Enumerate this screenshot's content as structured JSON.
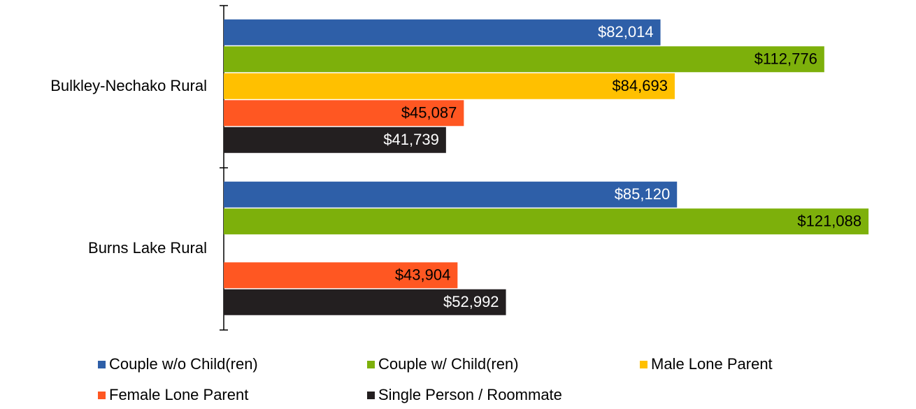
{
  "chart_data": {
    "type": "barh",
    "categories": [
      "Bulkley-Nechako Rural",
      "Burns Lake Rural"
    ],
    "series": [
      {
        "name": "Couple w/o Child(ren)",
        "color": "#2e5fa8",
        "values": [
          82014,
          85120
        ],
        "value_labels": [
          "$82,014",
          "$85,120"
        ]
      },
      {
        "name": "Couple w/ Child(ren)",
        "color": "#7db00b",
        "values": [
          112776,
          121088
        ],
        "value_labels": [
          "$112,776",
          "$121,088"
        ]
      },
      {
        "name": "Male Lone Parent",
        "color": "#ffc000",
        "values": [
          84693,
          null
        ],
        "value_labels": [
          "$84,693",
          null
        ]
      },
      {
        "name": "Female Lone Parent",
        "color": "#ff5722",
        "values": [
          45087,
          43904
        ],
        "value_labels": [
          "$45,087",
          "$43,904"
        ]
      },
      {
        "name": "Single Person / Roommate",
        "color": "#231f20",
        "values": [
          41739,
          52992
        ],
        "value_labels": [
          "$41,739",
          "$52,992"
        ]
      }
    ],
    "xlim": [
      0,
      130000
    ]
  }
}
